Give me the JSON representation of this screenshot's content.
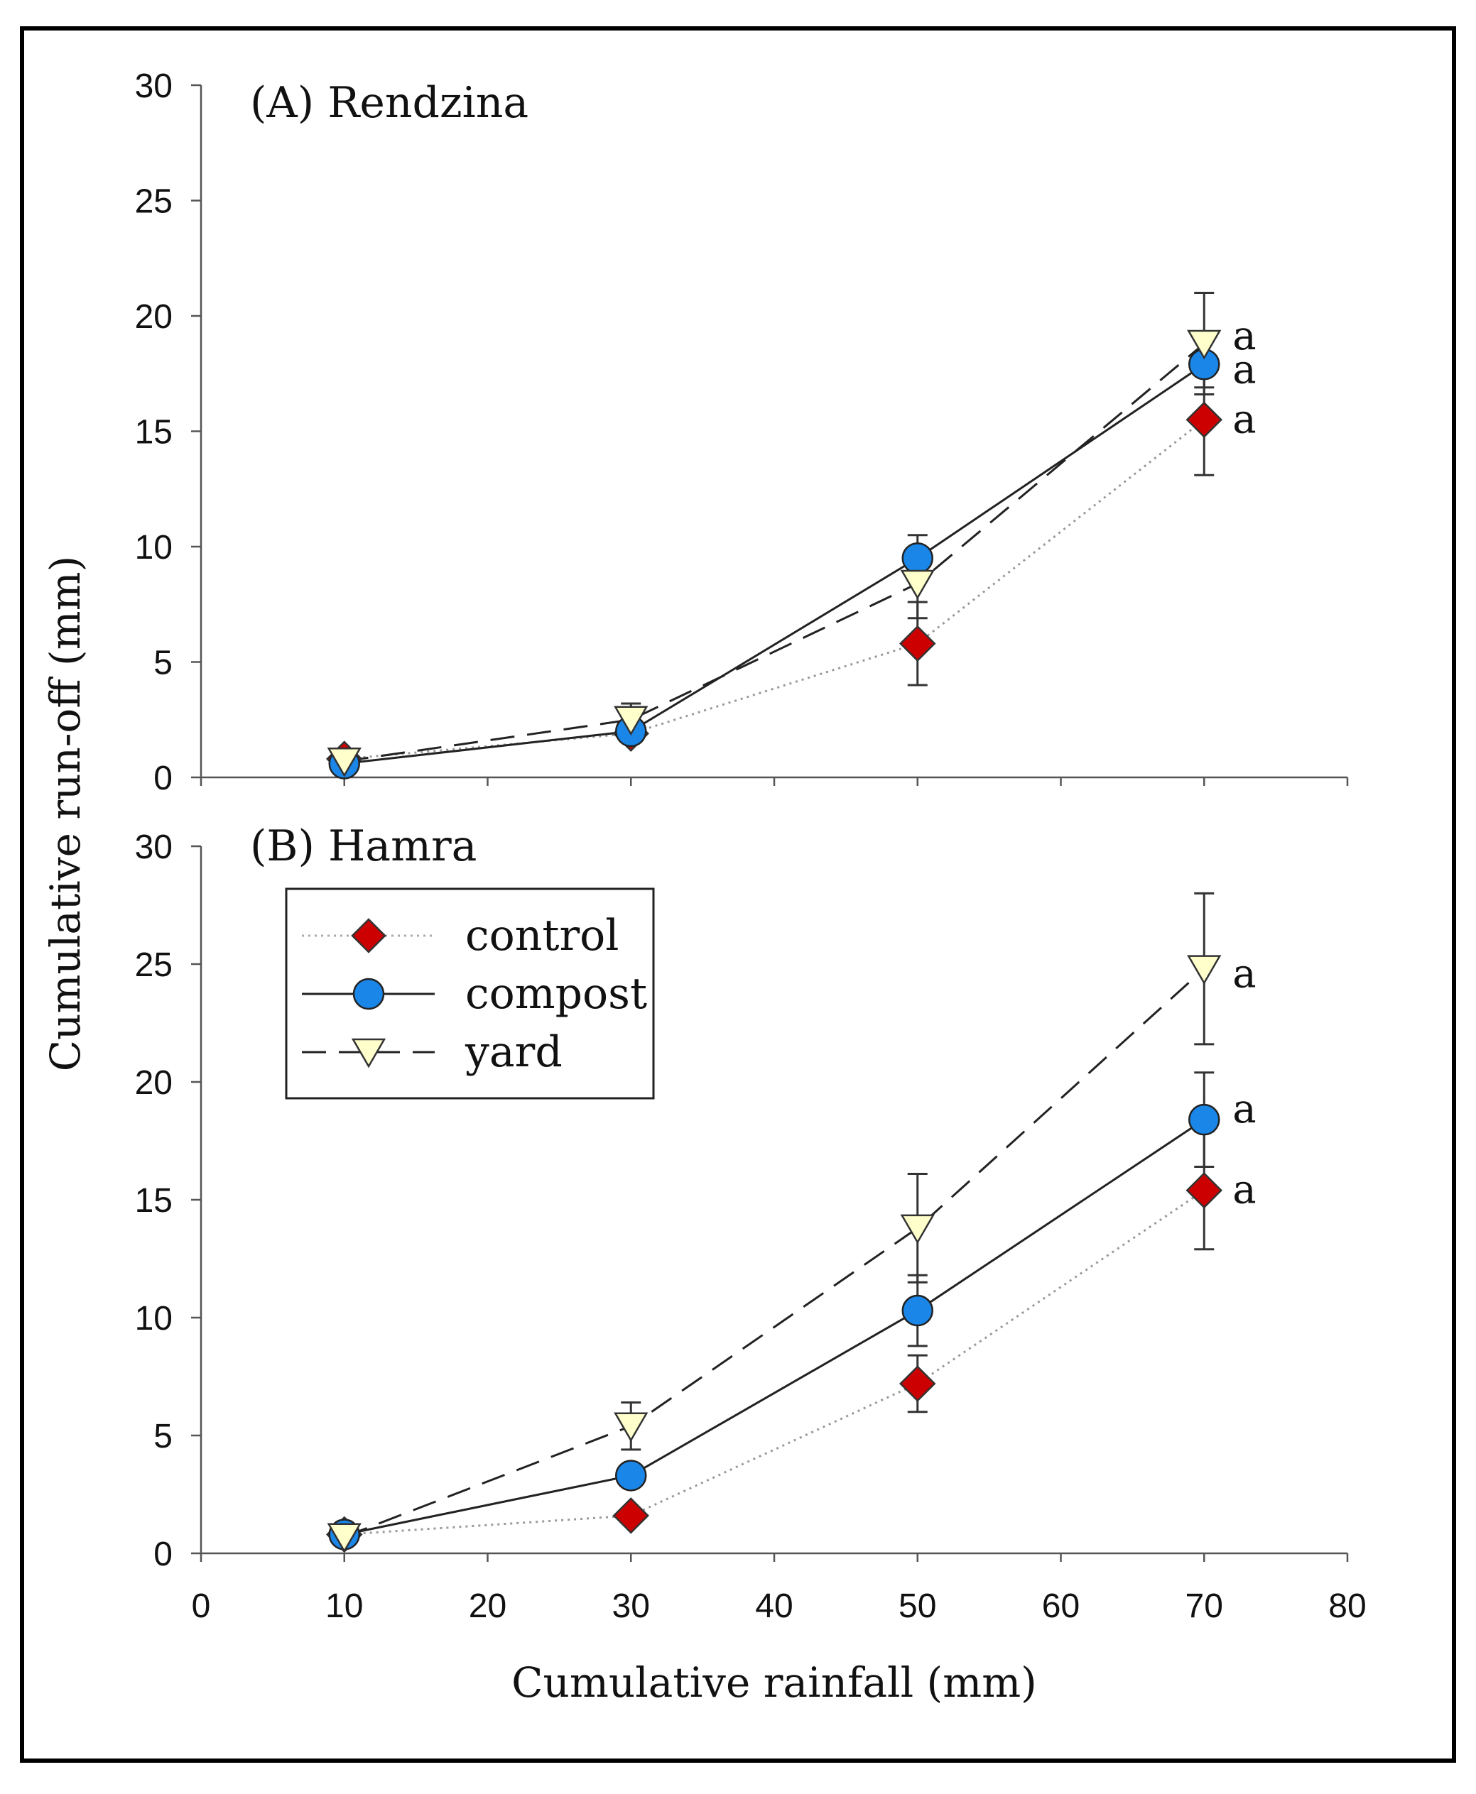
{
  "chart_data": [
    {
      "type": "line",
      "title": "(A) Rendzina",
      "xlabel": "",
      "ylabel": "Cumulative run-off (mm)",
      "x": [
        10,
        30,
        50,
        70
      ],
      "xlim": [
        0,
        80
      ],
      "ylim": [
        0,
        30
      ],
      "yticks": [
        "0",
        "5",
        "10",
        "15",
        "20",
        "25",
        "30"
      ],
      "xticks": [],
      "series": [
        {
          "name": "control",
          "values": [
            0.8,
            1.9,
            5.8,
            15.5
          ],
          "errors": [
            0.2,
            0.3,
            1.8,
            2.4
          ],
          "letter": "a"
        },
        {
          "name": "compost",
          "values": [
            0.6,
            2.0,
            9.5,
            17.9
          ],
          "errors": [
            0.2,
            0.3,
            1.0,
            1.0
          ],
          "letter": "a"
        },
        {
          "name": "yard",
          "values": [
            0.7,
            2.5,
            8.4,
            18.8
          ],
          "errors": [
            0.2,
            0.7,
            1.5,
            2.2
          ],
          "letter": "a"
        }
      ]
    },
    {
      "type": "line",
      "title": "(B) Hamra",
      "xlabel": "Cumulative rainfall (mm)",
      "ylabel": "",
      "x": [
        10,
        30,
        50,
        70
      ],
      "xlim": [
        0,
        80
      ],
      "ylim": [
        0,
        30
      ],
      "yticks": [
        "0",
        "5",
        "10",
        "15",
        "20",
        "25",
        "30"
      ],
      "xticks": [
        "0",
        "10",
        "20",
        "30",
        "40",
        "50",
        "60",
        "70",
        "80"
      ],
      "series": [
        {
          "name": "control",
          "values": [
            0.8,
            1.6,
            7.2,
            15.4
          ],
          "errors": [
            0.2,
            0.3,
            1.2,
            2.5
          ],
          "letter": "a"
        },
        {
          "name": "compost",
          "values": [
            0.8,
            3.3,
            10.3,
            18.4
          ],
          "errors": [
            0.2,
            0.3,
            1.5,
            2.0
          ],
          "letter": "a"
        },
        {
          "name": "yard",
          "values": [
            0.7,
            5.4,
            13.8,
            24.8
          ],
          "errors": [
            0.2,
            1.0,
            2.3,
            3.2
          ],
          "letter": "a"
        }
      ]
    }
  ],
  "legend": {
    "items": [
      {
        "label": "control",
        "marker": "diamond",
        "line": "dotted",
        "color": "#cc0000"
      },
      {
        "label": "compost",
        "marker": "circle",
        "line": "solid",
        "color": "#1a86e8"
      },
      {
        "label": "yard",
        "marker": "triangle-down",
        "line": "dashed",
        "color": "#ffffcc"
      }
    ]
  }
}
